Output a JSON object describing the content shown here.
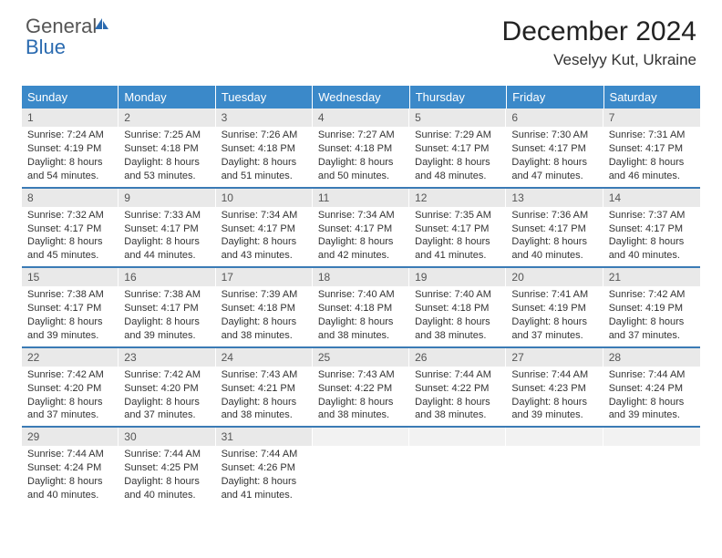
{
  "logo": {
    "text1": "General",
    "text2": "Blue"
  },
  "title": "December 2024",
  "location": "Veselyy Kut, Ukraine",
  "colors": {
    "header_bg": "#3b89c9",
    "header_text": "#ffffff",
    "week_border": "#3b7bb5",
    "daynum_bg": "#e9e9e9",
    "logo_blue": "#2b6bb0"
  },
  "daysOfWeek": [
    "Sunday",
    "Monday",
    "Tuesday",
    "Wednesday",
    "Thursday",
    "Friday",
    "Saturday"
  ],
  "weeks": [
    [
      {
        "n": "1",
        "sr": "7:24 AM",
        "ss": "4:19 PM",
        "dl": "8 hours and 54 minutes."
      },
      {
        "n": "2",
        "sr": "7:25 AM",
        "ss": "4:18 PM",
        "dl": "8 hours and 53 minutes."
      },
      {
        "n": "3",
        "sr": "7:26 AM",
        "ss": "4:18 PM",
        "dl": "8 hours and 51 minutes."
      },
      {
        "n": "4",
        "sr": "7:27 AM",
        "ss": "4:18 PM",
        "dl": "8 hours and 50 minutes."
      },
      {
        "n": "5",
        "sr": "7:29 AM",
        "ss": "4:17 PM",
        "dl": "8 hours and 48 minutes."
      },
      {
        "n": "6",
        "sr": "7:30 AM",
        "ss": "4:17 PM",
        "dl": "8 hours and 47 minutes."
      },
      {
        "n": "7",
        "sr": "7:31 AM",
        "ss": "4:17 PM",
        "dl": "8 hours and 46 minutes."
      }
    ],
    [
      {
        "n": "8",
        "sr": "7:32 AM",
        "ss": "4:17 PM",
        "dl": "8 hours and 45 minutes."
      },
      {
        "n": "9",
        "sr": "7:33 AM",
        "ss": "4:17 PM",
        "dl": "8 hours and 44 minutes."
      },
      {
        "n": "10",
        "sr": "7:34 AM",
        "ss": "4:17 PM",
        "dl": "8 hours and 43 minutes."
      },
      {
        "n": "11",
        "sr": "7:34 AM",
        "ss": "4:17 PM",
        "dl": "8 hours and 42 minutes."
      },
      {
        "n": "12",
        "sr": "7:35 AM",
        "ss": "4:17 PM",
        "dl": "8 hours and 41 minutes."
      },
      {
        "n": "13",
        "sr": "7:36 AM",
        "ss": "4:17 PM",
        "dl": "8 hours and 40 minutes."
      },
      {
        "n": "14",
        "sr": "7:37 AM",
        "ss": "4:17 PM",
        "dl": "8 hours and 40 minutes."
      }
    ],
    [
      {
        "n": "15",
        "sr": "7:38 AM",
        "ss": "4:17 PM",
        "dl": "8 hours and 39 minutes."
      },
      {
        "n": "16",
        "sr": "7:38 AM",
        "ss": "4:17 PM",
        "dl": "8 hours and 39 minutes."
      },
      {
        "n": "17",
        "sr": "7:39 AM",
        "ss": "4:18 PM",
        "dl": "8 hours and 38 minutes."
      },
      {
        "n": "18",
        "sr": "7:40 AM",
        "ss": "4:18 PM",
        "dl": "8 hours and 38 minutes."
      },
      {
        "n": "19",
        "sr": "7:40 AM",
        "ss": "4:18 PM",
        "dl": "8 hours and 38 minutes."
      },
      {
        "n": "20",
        "sr": "7:41 AM",
        "ss": "4:19 PM",
        "dl": "8 hours and 37 minutes."
      },
      {
        "n": "21",
        "sr": "7:42 AM",
        "ss": "4:19 PM",
        "dl": "8 hours and 37 minutes."
      }
    ],
    [
      {
        "n": "22",
        "sr": "7:42 AM",
        "ss": "4:20 PM",
        "dl": "8 hours and 37 minutes."
      },
      {
        "n": "23",
        "sr": "7:42 AM",
        "ss": "4:20 PM",
        "dl": "8 hours and 37 minutes."
      },
      {
        "n": "24",
        "sr": "7:43 AM",
        "ss": "4:21 PM",
        "dl": "8 hours and 38 minutes."
      },
      {
        "n": "25",
        "sr": "7:43 AM",
        "ss": "4:22 PM",
        "dl": "8 hours and 38 minutes."
      },
      {
        "n": "26",
        "sr": "7:44 AM",
        "ss": "4:22 PM",
        "dl": "8 hours and 38 minutes."
      },
      {
        "n": "27",
        "sr": "7:44 AM",
        "ss": "4:23 PM",
        "dl": "8 hours and 39 minutes."
      },
      {
        "n": "28",
        "sr": "7:44 AM",
        "ss": "4:24 PM",
        "dl": "8 hours and 39 minutes."
      }
    ],
    [
      {
        "n": "29",
        "sr": "7:44 AM",
        "ss": "4:24 PM",
        "dl": "8 hours and 40 minutes."
      },
      {
        "n": "30",
        "sr": "7:44 AM",
        "ss": "4:25 PM",
        "dl": "8 hours and 40 minutes."
      },
      {
        "n": "31",
        "sr": "7:44 AM",
        "ss": "4:26 PM",
        "dl": "8 hours and 41 minutes."
      },
      {
        "n": "",
        "empty": true
      },
      {
        "n": "",
        "empty": true
      },
      {
        "n": "",
        "empty": true
      },
      {
        "n": "",
        "empty": true
      }
    ]
  ],
  "labels": {
    "sunrise": "Sunrise: ",
    "sunset": "Sunset: ",
    "daylight": "Daylight: "
  }
}
